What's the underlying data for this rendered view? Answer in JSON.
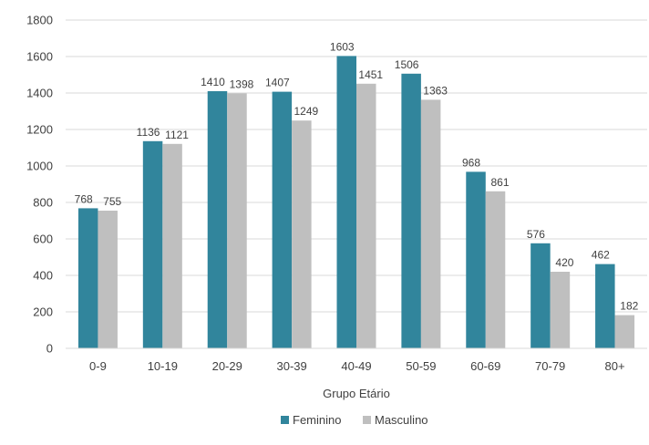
{
  "chart_data": {
    "type": "bar",
    "title": "",
    "xlabel": "Grupo Etário",
    "ylabel": "",
    "categories": [
      "0-9",
      "10-19",
      "20-29",
      "30-39",
      "40-49",
      "50-59",
      "60-69",
      "70-79",
      "80+"
    ],
    "series": [
      {
        "name": "Feminino",
        "color": "#31859c",
        "values": [
          768,
          1136,
          1410,
          1407,
          1603,
          1506,
          968,
          576,
          462
        ]
      },
      {
        "name": "Masculino",
        "color": "#bfbfbf",
        "values": [
          755,
          1121,
          1398,
          1249,
          1451,
          1363,
          861,
          420,
          182
        ]
      }
    ],
    "ylim": [
      0,
      1800
    ],
    "yticks": [
      0,
      200,
      400,
      600,
      800,
      1000,
      1200,
      1400,
      1600,
      1800
    ],
    "grid": true,
    "legend": "bottom",
    "gridline_color": "#d9d9d9"
  }
}
